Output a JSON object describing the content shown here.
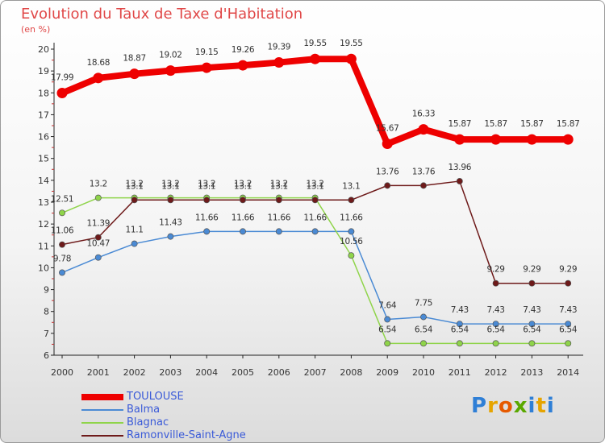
{
  "title": "Evolution du Taux de Taxe d'Habitation",
  "subtitle": "(en %)",
  "logo": {
    "letters": [
      "P",
      "r",
      "o",
      "x",
      "i",
      "t",
      "i"
    ],
    "colors": [
      "#2f7fd6",
      "#e6a400",
      "#e65a00",
      "#5aa800",
      "#2f7fd6",
      "#e6a400",
      "#2f7fd6"
    ]
  },
  "chart_data": {
    "type": "line",
    "title": "Evolution du Taux de Taxe d'Habitation",
    "ylabel": "(en %)",
    "xlabel": "",
    "x": [
      "2000",
      "2001",
      "2002",
      "2003",
      "2004",
      "2005",
      "2006",
      "2007",
      "2008",
      "2009",
      "2010",
      "2011",
      "2012",
      "2013",
      "2014"
    ],
    "ylim": [
      6,
      20
    ],
    "yticks": [
      "6",
      "7",
      "8",
      "9",
      "10",
      "11",
      "12",
      "13",
      "14",
      "15",
      "16",
      "17",
      "18",
      "19",
      "20"
    ],
    "grid": false,
    "legend": "bottom-left",
    "series": [
      {
        "name": "TOULOUSE",
        "color": "#ee0000",
        "values": [
          17.99,
          18.68,
          18.87,
          19.02,
          19.15,
          19.26,
          19.39,
          19.55,
          19.55,
          15.67,
          16.33,
          15.87,
          15.87,
          15.87,
          15.87
        ],
        "labels": [
          "17.99",
          "18.68",
          "18.87",
          "19.02",
          "19.15",
          "19.26",
          "19.39",
          "19.55",
          "19.55",
          "15.67",
          "16.33",
          "15.87",
          "15.87",
          "15.87",
          "15.87"
        ]
      },
      {
        "name": "Balma",
        "color": "#4a8ad4",
        "values": [
          9.78,
          10.47,
          11.1,
          11.43,
          11.66,
          11.66,
          11.66,
          11.66,
          11.66,
          7.64,
          7.75,
          7.43,
          7.43,
          7.43,
          7.43
        ],
        "labels": [
          "9.78",
          "10.47",
          "11.1",
          "11.43",
          "11.66",
          "11.66",
          "11.66",
          "11.66",
          "11.66",
          "7.64",
          "7.75",
          "7.43",
          "7.43",
          "7.43",
          "7.43"
        ]
      },
      {
        "name": "Blagnac",
        "color": "#8fd44a",
        "values": [
          12.51,
          13.2,
          13.2,
          13.2,
          13.2,
          13.2,
          13.2,
          13.2,
          10.56,
          6.54,
          6.54,
          6.54,
          6.54,
          6.54,
          6.54
        ],
        "labels": [
          "12.51",
          "13.2",
          "13.2",
          "13.2",
          "13.2",
          "13.2",
          "13.2",
          "13.2",
          "10.56",
          "6.54",
          "6.54",
          "6.54",
          "6.54",
          "6.54",
          "6.54"
        ]
      },
      {
        "name": "Ramonville-Saint-Agne",
        "color": "#6e1a1a",
        "values": [
          11.06,
          11.39,
          13.1,
          13.1,
          13.1,
          13.1,
          13.1,
          13.1,
          13.1,
          13.76,
          13.76,
          13.96,
          9.29,
          9.29,
          9.29
        ],
        "labels": [
          "11.06",
          "11.39",
          "13.1",
          "13.1",
          "13.1",
          "13.1",
          "13.1",
          "13.1",
          "13.1",
          "13.76",
          "13.76",
          "13.96",
          "9.29",
          "9.29",
          "9.29"
        ]
      }
    ]
  }
}
